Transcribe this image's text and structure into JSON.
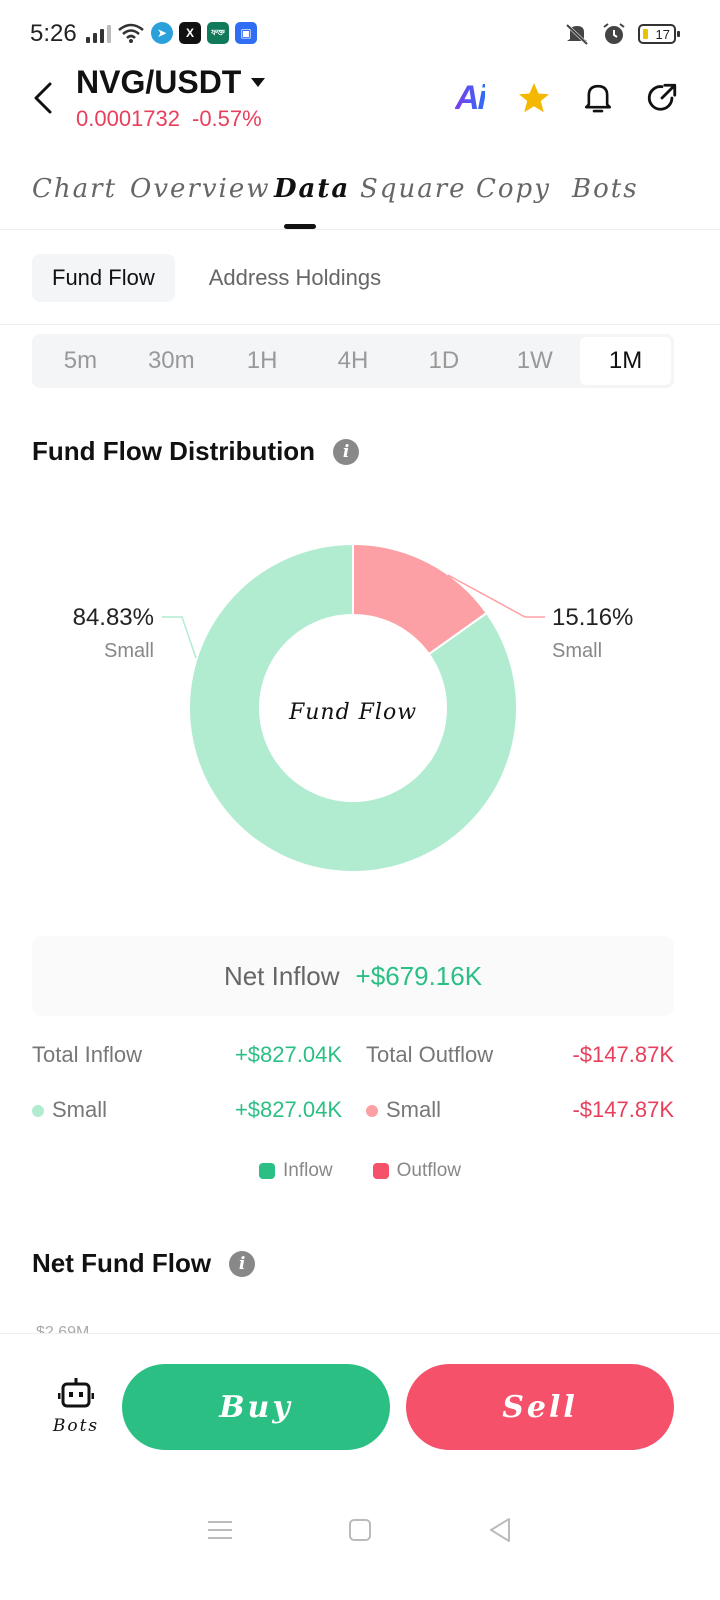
{
  "status_bar": {
    "time": "5:26",
    "battery": "17",
    "app_badges": [
      "X",
      "ফক্ত"
    ]
  },
  "header": {
    "pair": "NVG/USDT",
    "price": "0.0001732",
    "change": "-0.57%",
    "ai_label": "Ai",
    "star_color": "#f5b800"
  },
  "tabs": [
    "Chart",
    "Overview",
    "Data",
    "Square",
    "Copy",
    "Bots"
  ],
  "active_tab": "Data",
  "sub_tabs": [
    "Fund Flow",
    "Address Holdings"
  ],
  "periods": [
    "5m",
    "30m",
    "1H",
    "4H",
    "1D",
    "1W",
    "1M"
  ],
  "active_period": "1M",
  "distribution": {
    "title": "Fund Flow Distribution",
    "center_label": "Fund Flow",
    "inflow_pct": "84.83%",
    "inflow_sub": "Small",
    "outflow_pct": "15.16%",
    "outflow_sub": "Small"
  },
  "chart_data": {
    "type": "pie",
    "title": "Fund Flow Distribution",
    "categories": [
      "Small (Inflow)",
      "Small (Outflow)"
    ],
    "values": [
      84.83,
      15.16
    ],
    "colors": [
      "#b2ecd0",
      "#fca0a6"
    ]
  },
  "net": {
    "label": "Net Inflow",
    "value": "+$679.16K"
  },
  "totals": {
    "inflow_label": "Total Inflow",
    "inflow_value": "+$827.04K",
    "outflow_label": "Total Outflow",
    "outflow_value": "-$147.87K",
    "small_in_label": "Small",
    "small_in_value": "+$827.04K",
    "small_out_label": "Small",
    "small_out_value": "-$147.87K"
  },
  "legend": {
    "inflow": "Inflow",
    "outflow": "Outflow"
  },
  "net_fund_flow": {
    "title": "Net Fund Flow",
    "axis_peek": "$2.69M"
  },
  "bottom": {
    "bots": "Bots",
    "buy": "Buy",
    "sell": "Sell"
  },
  "colors": {
    "green": "#2bbf84",
    "red": "#f5516a",
    "inflow_light": "#b2ecd0",
    "outflow_light": "#fca0a6"
  }
}
